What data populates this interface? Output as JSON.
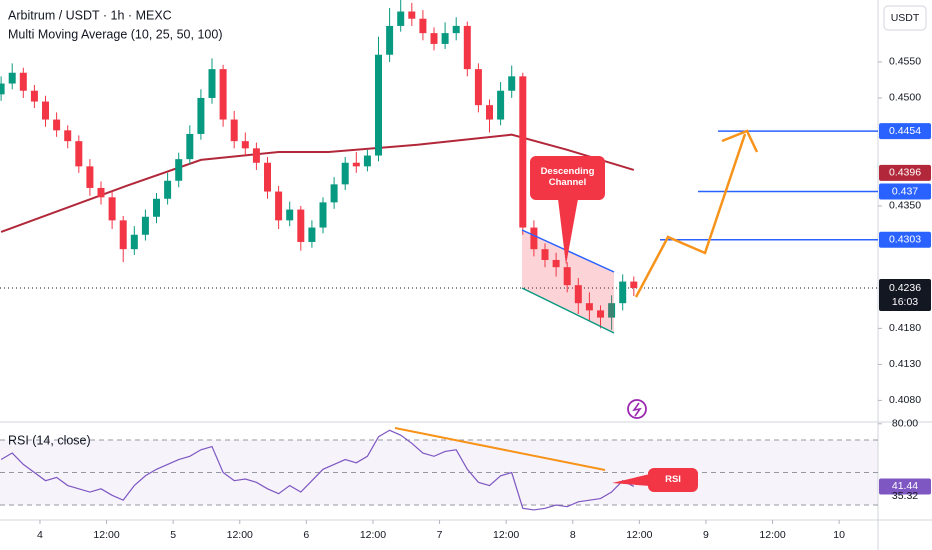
{
  "chart_data": {
    "type": "candlestick",
    "title": "Arbitrum / USDT · 1h · MEXC",
    "indicator": "Multi Moving Average (10, 25, 50, 100)",
    "currency": "USDT",
    "up_color": "#089981",
    "down_color": "#f23645",
    "xlim": [
      -7.2,
      151
    ],
    "xticks": [
      {
        "value": 0,
        "label": "4"
      },
      {
        "value": 12,
        "label": "12:00"
      },
      {
        "value": 24,
        "label": "5"
      },
      {
        "value": 36,
        "label": "12:00"
      },
      {
        "value": 48,
        "label": "6"
      },
      {
        "value": 60,
        "label": "12:00"
      },
      {
        "value": 72,
        "label": "7"
      },
      {
        "value": 84,
        "label": "12:00"
      },
      {
        "value": 96,
        "label": "8"
      },
      {
        "value": 108,
        "label": "12:00"
      },
      {
        "value": 120,
        "label": "9"
      },
      {
        "value": 132,
        "label": "12:00"
      },
      {
        "value": 144,
        "label": "10"
      }
    ],
    "ylim": [
      0.405,
      0.4636
    ],
    "yticks": [
      {
        "value": 0.455,
        "label": "0.4550"
      },
      {
        "value": 0.45,
        "label": "0.4500"
      },
      {
        "value": 0.435,
        "label": "0.4350"
      },
      {
        "value": 0.418,
        "label": "0.4180"
      },
      {
        "value": 0.413,
        "label": "0.4130"
      },
      {
        "value": 0.408,
        "label": "0.4080"
      }
    ],
    "x": [
      -7,
      -5,
      -3,
      -1,
      1,
      3,
      5,
      7,
      9,
      11,
      13,
      15,
      17,
      19,
      21,
      23,
      25,
      27,
      29,
      31,
      33,
      35,
      37,
      39,
      41,
      43,
      45,
      47,
      49,
      51,
      53,
      55,
      57,
      59,
      61,
      63,
      65,
      67,
      69,
      71,
      73,
      75,
      77,
      79,
      81,
      83,
      85,
      87,
      89,
      91,
      93,
      95,
      97,
      99,
      101,
      103,
      105,
      107
    ],
    "open": [
      0.4505,
      0.452,
      0.4535,
      0.451,
      0.4495,
      0.447,
      0.4455,
      0.444,
      0.4405,
      0.4375,
      0.4362,
      0.433,
      0.429,
      0.431,
      0.4335,
      0.436,
      0.4385,
      0.4415,
      0.445,
      0.45,
      0.454,
      0.447,
      0.444,
      0.443,
      0.441,
      0.437,
      0.433,
      0.4345,
      0.43,
      0.432,
      0.4355,
      0.438,
      0.441,
      0.4405,
      0.442,
      0.456,
      0.46,
      0.462,
      0.461,
      0.459,
      0.4575,
      0.459,
      0.46,
      0.454,
      0.449,
      0.447,
      0.451,
      0.453,
      0.432,
      0.429,
      0.4275,
      0.4265,
      0.424,
      0.4215,
      0.4205,
      0.4195,
      0.4215,
      0.4245
    ],
    "high": [
      0.453,
      0.4548,
      0.4542,
      0.4518,
      0.4503,
      0.448,
      0.4462,
      0.4448,
      0.4415,
      0.4384,
      0.437,
      0.4336,
      0.4322,
      0.4345,
      0.4368,
      0.4396,
      0.4424,
      0.4462,
      0.4512,
      0.4555,
      0.4546,
      0.4482,
      0.4452,
      0.4438,
      0.4418,
      0.4378,
      0.4356,
      0.435,
      0.433,
      0.4362,
      0.439,
      0.4418,
      0.4425,
      0.4428,
      0.4585,
      0.4625,
      0.4636,
      0.4632,
      0.4622,
      0.4598,
      0.4605,
      0.4612,
      0.4606,
      0.4548,
      0.4498,
      0.4522,
      0.4545,
      0.4535,
      0.433,
      0.4298,
      0.4285,
      0.4272,
      0.425,
      0.423,
      0.4212,
      0.4226,
      0.4255,
      0.4252
    ],
    "low": [
      0.4496,
      0.4512,
      0.45,
      0.4486,
      0.446,
      0.4446,
      0.443,
      0.4396,
      0.4364,
      0.4352,
      0.4318,
      0.4272,
      0.4282,
      0.4302,
      0.4326,
      0.4352,
      0.4376,
      0.4408,
      0.4442,
      0.4492,
      0.446,
      0.443,
      0.442,
      0.44,
      0.436,
      0.4318,
      0.4322,
      0.4288,
      0.4292,
      0.4312,
      0.4346,
      0.4372,
      0.4396,
      0.4398,
      0.4412,
      0.455,
      0.4592,
      0.46,
      0.458,
      0.4566,
      0.4568,
      0.458,
      0.453,
      0.448,
      0.4452,
      0.4462,
      0.45,
      0.431,
      0.428,
      0.4265,
      0.4252,
      0.423,
      0.42,
      0.419,
      0.418,
      0.4178,
      0.4205,
      0.4225
    ],
    "close": [
      0.452,
      0.4535,
      0.451,
      0.4495,
      0.447,
      0.4455,
      0.444,
      0.4405,
      0.4375,
      0.4362,
      0.433,
      0.429,
      0.431,
      0.4335,
      0.436,
      0.4385,
      0.4415,
      0.445,
      0.45,
      0.454,
      0.447,
      0.444,
      0.443,
      0.441,
      0.437,
      0.433,
      0.4345,
      0.43,
      0.432,
      0.4355,
      0.438,
      0.441,
      0.4405,
      0.442,
      0.456,
      0.46,
      0.462,
      0.461,
      0.459,
      0.4575,
      0.459,
      0.46,
      0.454,
      0.449,
      0.447,
      0.451,
      0.453,
      0.432,
      0.429,
      0.4275,
      0.4265,
      0.424,
      0.4215,
      0.4205,
      0.4195,
      0.4215,
      0.4245,
      0.4236
    ],
    "moving_average": {
      "color": "#b2283a",
      "x": [
        -7,
        16,
        29,
        43,
        52,
        68,
        85,
        95,
        107
      ],
      "values": [
        0.4314,
        0.4379,
        0.4414,
        0.4425,
        0.4425,
        0.4435,
        0.4449,
        0.4428,
        0.44
      ],
      "last": 0.4396
    },
    "levels": [
      0.4454,
      0.437,
      0.4303
    ],
    "level_color": "#2962ff",
    "last_price": 0.4236,
    "countdown": "16:03",
    "annotations": [
      "Descending Channel",
      "RSI"
    ],
    "rsi": {
      "name": "RSI (14, close)",
      "color": "#7e57c2",
      "ylim": [
        20.8,
        81.1
      ],
      "yticks": [
        {
          "value": 80,
          "label": "80.00"
        }
      ],
      "bands": [
        70,
        50,
        30
      ],
      "values": [
        58,
        62,
        55,
        50,
        45,
        47,
        42,
        40,
        38,
        40,
        36,
        33,
        42,
        48,
        52,
        55,
        58,
        60,
        64,
        66,
        50,
        45,
        46,
        44,
        40,
        37,
        42,
        38,
        45,
        52,
        55,
        58,
        56,
        60,
        72,
        76,
        73,
        68,
        62,
        60,
        63,
        64,
        52,
        44,
        42,
        48,
        50,
        28,
        27,
        28,
        30,
        29,
        32,
        33,
        34,
        38,
        45,
        41.44
      ],
      "last": 41.44,
      "signal_last": 35.32
    }
  }
}
